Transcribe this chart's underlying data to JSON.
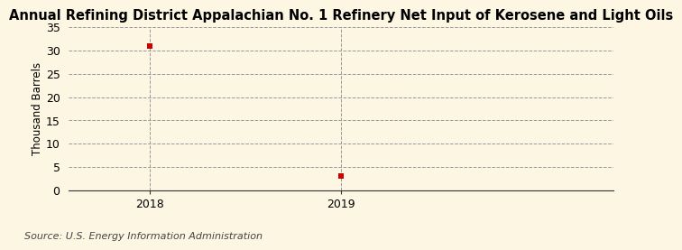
{
  "title": "Annual Refining District Appalachian No. 1 Refinery Net Input of Kerosene and Light Oils",
  "ylabel": "Thousand Barrels",
  "source": "Source: U.S. Energy Information Administration",
  "x": [
    2018,
    2019
  ],
  "y": [
    31,
    3
  ],
  "marker_color": "#cc0000",
  "marker": "s",
  "marker_size": 4,
  "ylim": [
    0,
    35
  ],
  "yticks": [
    0,
    5,
    10,
    15,
    20,
    25,
    30,
    35
  ],
  "xlim": [
    2017.58,
    2020.42
  ],
  "xticks": [
    2018,
    2019
  ],
  "background_color": "#fdf6e3",
  "grid_color": "#999999",
  "title_fontsize": 10.5,
  "label_fontsize": 8.5,
  "tick_fontsize": 9,
  "source_fontsize": 8
}
